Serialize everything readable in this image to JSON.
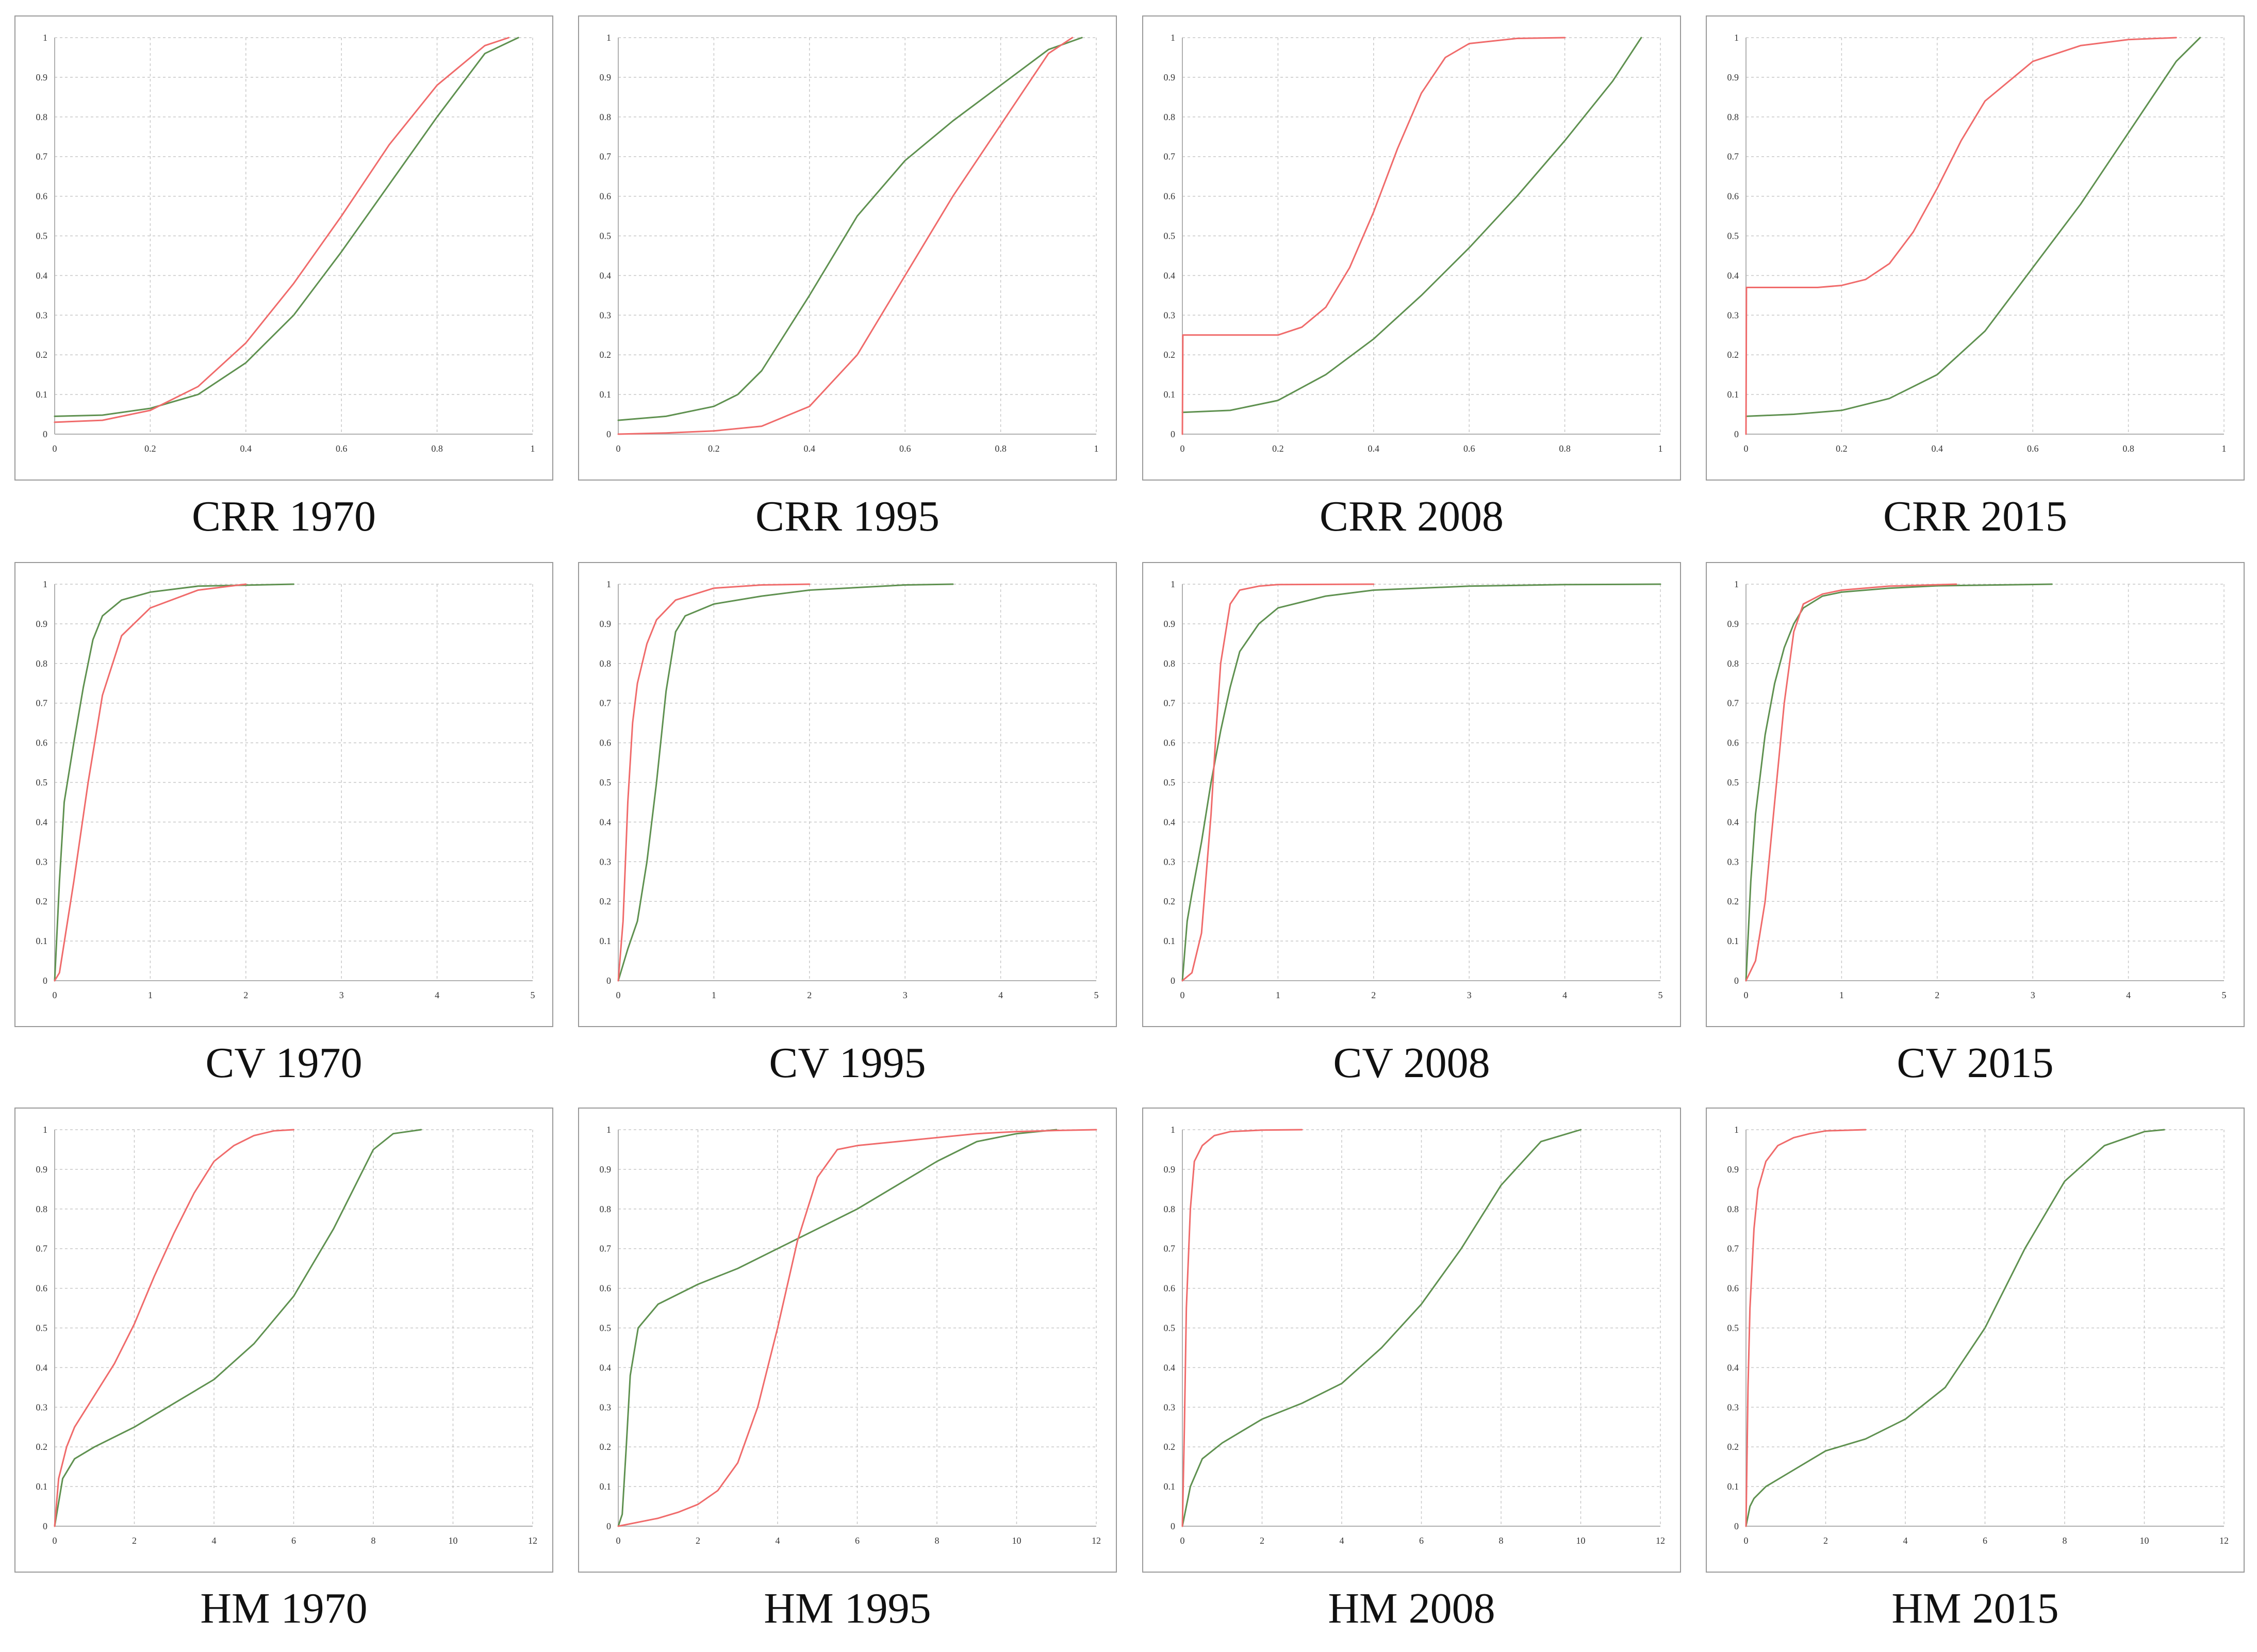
{
  "colors": {
    "red_series": "#f06b6b",
    "green_series": "#5f9150",
    "gridline": "#c8c8c8",
    "frame": "#9a9a9a"
  },
  "chart_data": [
    {
      "type": "line",
      "title": "CRR 1970",
      "xlim": [
        0,
        1
      ],
      "ylim": [
        0,
        1
      ],
      "xticks": [
        "0",
        "0.2",
        "0.4",
        "0.6",
        "0.8",
        "1"
      ],
      "yticks": [
        "0",
        "0.1",
        "0.2",
        "0.3",
        "0.4",
        "0.5",
        "0.6",
        "0.7",
        "0.8",
        "0.9",
        "1"
      ],
      "series": [
        {
          "name": "red",
          "x": [
            0,
            0.1,
            0.2,
            0.3,
            0.4,
            0.5,
            0.6,
            0.7,
            0.8,
            0.9,
            0.95
          ],
          "y": [
            0.03,
            0.035,
            0.06,
            0.12,
            0.23,
            0.38,
            0.55,
            0.73,
            0.88,
            0.98,
            1.0
          ]
        },
        {
          "name": "green",
          "x": [
            0,
            0.1,
            0.2,
            0.3,
            0.4,
            0.5,
            0.6,
            0.7,
            0.8,
            0.9,
            0.97
          ],
          "y": [
            0.045,
            0.048,
            0.065,
            0.1,
            0.18,
            0.3,
            0.46,
            0.63,
            0.8,
            0.96,
            1.0
          ]
        }
      ]
    },
    {
      "type": "line",
      "title": "CRR 1995",
      "xlim": [
        0,
        1
      ],
      "ylim": [
        0,
        1
      ],
      "xticks": [
        "0",
        "0.2",
        "0.4",
        "0.6",
        "0.8",
        "1"
      ],
      "yticks": [
        "0",
        "0.1",
        "0.2",
        "0.3",
        "0.4",
        "0.5",
        "0.6",
        "0.7",
        "0.8",
        "0.9",
        "1"
      ],
      "series": [
        {
          "name": "red",
          "x": [
            0,
            0.1,
            0.2,
            0.3,
            0.4,
            0.5,
            0.6,
            0.7,
            0.8,
            0.9,
            0.95
          ],
          "y": [
            0.0,
            0.003,
            0.008,
            0.02,
            0.07,
            0.2,
            0.4,
            0.6,
            0.78,
            0.96,
            1.0
          ]
        },
        {
          "name": "green",
          "x": [
            0,
            0.1,
            0.2,
            0.25,
            0.3,
            0.4,
            0.5,
            0.6,
            0.7,
            0.8,
            0.9,
            0.97
          ],
          "y": [
            0.035,
            0.045,
            0.07,
            0.1,
            0.16,
            0.35,
            0.55,
            0.69,
            0.79,
            0.88,
            0.97,
            1.0
          ]
        }
      ]
    },
    {
      "type": "line",
      "title": "CRR 2008",
      "xlim": [
        0,
        1
      ],
      "ylim": [
        0,
        1
      ],
      "xticks": [
        "0",
        "0.2",
        "0.4",
        "0.6",
        "0.8",
        "1"
      ],
      "yticks": [
        "0",
        "0.1",
        "0.2",
        "0.3",
        "0.4",
        "0.5",
        "0.6",
        "0.7",
        "0.8",
        "0.9",
        "1"
      ],
      "series": [
        {
          "name": "red",
          "x": [
            0,
            0.001,
            0.2,
            0.25,
            0.3,
            0.35,
            0.4,
            0.45,
            0.5,
            0.55,
            0.6,
            0.7,
            0.8
          ],
          "y": [
            0.0,
            0.25,
            0.25,
            0.27,
            0.32,
            0.42,
            0.56,
            0.72,
            0.86,
            0.95,
            0.985,
            0.998,
            1.0
          ]
        },
        {
          "name": "green",
          "x": [
            0,
            0.1,
            0.2,
            0.3,
            0.4,
            0.5,
            0.6,
            0.7,
            0.8,
            0.9,
            0.96
          ],
          "y": [
            0.055,
            0.06,
            0.085,
            0.15,
            0.24,
            0.35,
            0.47,
            0.6,
            0.74,
            0.89,
            1.0
          ]
        }
      ]
    },
    {
      "type": "line",
      "title": "CRR 2015",
      "xlim": [
        0,
        1
      ],
      "ylim": [
        0,
        1
      ],
      "xticks": [
        "0",
        "0.2",
        "0.4",
        "0.6",
        "0.8",
        "1"
      ],
      "yticks": [
        "0",
        "0.1",
        "0.2",
        "0.3",
        "0.4",
        "0.5",
        "0.6",
        "0.7",
        "0.8",
        "0.9",
        "1"
      ],
      "series": [
        {
          "name": "red",
          "x": [
            0,
            0.001,
            0.15,
            0.2,
            0.25,
            0.3,
            0.35,
            0.4,
            0.45,
            0.5,
            0.6,
            0.7,
            0.8,
            0.9
          ],
          "y": [
            0.0,
            0.37,
            0.37,
            0.375,
            0.39,
            0.43,
            0.51,
            0.62,
            0.74,
            0.84,
            0.94,
            0.98,
            0.995,
            1.0
          ]
        },
        {
          "name": "green",
          "x": [
            0,
            0.1,
            0.2,
            0.3,
            0.4,
            0.5,
            0.6,
            0.7,
            0.8,
            0.9,
            0.95
          ],
          "y": [
            0.045,
            0.05,
            0.06,
            0.09,
            0.15,
            0.26,
            0.42,
            0.58,
            0.76,
            0.94,
            1.0
          ]
        }
      ]
    },
    {
      "type": "line",
      "title": "CV 1970",
      "xlim": [
        0,
        5
      ],
      "ylim": [
        0,
        1
      ],
      "xticks": [
        "0",
        "1",
        "2",
        "3",
        "4",
        "5"
      ],
      "yticks": [
        "0",
        "0.1",
        "0.2",
        "0.3",
        "0.4",
        "0.5",
        "0.6",
        "0.7",
        "0.8",
        "0.9",
        "1"
      ],
      "series": [
        {
          "name": "red",
          "x": [
            0,
            0.05,
            0.2,
            0.35,
            0.5,
            0.7,
            1.0,
            1.5,
            2.0
          ],
          "y": [
            0.0,
            0.02,
            0.25,
            0.5,
            0.72,
            0.87,
            0.94,
            0.985,
            1.0
          ]
        },
        {
          "name": "green",
          "x": [
            0,
            0.05,
            0.1,
            0.2,
            0.3,
            0.4,
            0.5,
            0.7,
            1.0,
            1.5,
            2.5
          ],
          "y": [
            0.0,
            0.25,
            0.45,
            0.6,
            0.74,
            0.86,
            0.92,
            0.96,
            0.98,
            0.995,
            1.0
          ]
        }
      ]
    },
    {
      "type": "line",
      "title": "CV 1995",
      "xlim": [
        0,
        5
      ],
      "ylim": [
        0,
        1
      ],
      "xticks": [
        "0",
        "1",
        "2",
        "3",
        "4",
        "5"
      ],
      "yticks": [
        "0",
        "0.1",
        "0.2",
        "0.3",
        "0.4",
        "0.5",
        "0.6",
        "0.7",
        "0.8",
        "0.9",
        "1"
      ],
      "series": [
        {
          "name": "red",
          "x": [
            0,
            0.05,
            0.1,
            0.15,
            0.2,
            0.3,
            0.4,
            0.6,
            1.0,
            1.5,
            2.0
          ],
          "y": [
            0.0,
            0.15,
            0.45,
            0.65,
            0.75,
            0.85,
            0.91,
            0.96,
            0.99,
            0.998,
            1.0
          ]
        },
        {
          "name": "green",
          "x": [
            0,
            0.1,
            0.2,
            0.3,
            0.4,
            0.5,
            0.6,
            0.7,
            1.0,
            1.5,
            2.0,
            3.0,
            3.5
          ],
          "y": [
            0.0,
            0.08,
            0.15,
            0.3,
            0.5,
            0.73,
            0.88,
            0.92,
            0.95,
            0.97,
            0.985,
            0.998,
            1.0
          ]
        }
      ]
    },
    {
      "type": "line",
      "title": "CV 2008",
      "xlim": [
        0,
        5
      ],
      "ylim": [
        0,
        1
      ],
      "xticks": [
        "0",
        "1",
        "2",
        "3",
        "4",
        "5"
      ],
      "yticks": [
        "0",
        "0.1",
        "0.2",
        "0.3",
        "0.4",
        "0.5",
        "0.6",
        "0.7",
        "0.8",
        "0.9",
        "1"
      ],
      "series": [
        {
          "name": "red",
          "x": [
            0,
            0.1,
            0.2,
            0.3,
            0.35,
            0.4,
            0.5,
            0.6,
            0.8,
            1.0,
            2.0
          ],
          "y": [
            0.0,
            0.02,
            0.12,
            0.42,
            0.62,
            0.8,
            0.95,
            0.985,
            0.995,
            0.999,
            1.0
          ]
        },
        {
          "name": "green",
          "x": [
            0,
            0.05,
            0.1,
            0.2,
            0.3,
            0.4,
            0.5,
            0.6,
            0.8,
            1.0,
            1.5,
            2.0,
            3.0,
            4.0,
            5.0
          ],
          "y": [
            0.0,
            0.15,
            0.22,
            0.35,
            0.5,
            0.63,
            0.74,
            0.83,
            0.9,
            0.94,
            0.97,
            0.985,
            0.995,
            0.999,
            1.0
          ]
        }
      ]
    },
    {
      "type": "line",
      "title": "CV 2015",
      "xlim": [
        0,
        5
      ],
      "ylim": [
        0,
        1
      ],
      "xticks": [
        "0",
        "1",
        "2",
        "3",
        "4",
        "5"
      ],
      "yticks": [
        "0",
        "0.1",
        "0.2",
        "0.3",
        "0.4",
        "0.5",
        "0.6",
        "0.7",
        "0.8",
        "0.9",
        "1"
      ],
      "series": [
        {
          "name": "red",
          "x": [
            0,
            0.1,
            0.2,
            0.3,
            0.4,
            0.5,
            0.6,
            0.8,
            1.0,
            1.5,
            2.2
          ],
          "y": [
            0.0,
            0.05,
            0.2,
            0.45,
            0.7,
            0.88,
            0.95,
            0.975,
            0.985,
            0.995,
            1.0
          ]
        },
        {
          "name": "green",
          "x": [
            0,
            0.05,
            0.1,
            0.2,
            0.3,
            0.4,
            0.5,
            0.6,
            0.8,
            1.0,
            1.5,
            2.0,
            3.2
          ],
          "y": [
            0.0,
            0.25,
            0.42,
            0.62,
            0.75,
            0.84,
            0.9,
            0.94,
            0.97,
            0.98,
            0.99,
            0.996,
            1.0
          ]
        }
      ]
    },
    {
      "type": "line",
      "title": "HM 1970",
      "xlim": [
        0,
        12
      ],
      "ylim": [
        0,
        1
      ],
      "xticks": [
        "0",
        "2",
        "4",
        "6",
        "8",
        "10",
        "12"
      ],
      "yticks": [
        "0",
        "0.1",
        "0.2",
        "0.3",
        "0.4",
        "0.5",
        "0.6",
        "0.7",
        "0.8",
        "0.9",
        "1"
      ],
      "series": [
        {
          "name": "red",
          "x": [
            0,
            0.1,
            0.3,
            0.5,
            1.0,
            1.5,
            2.0,
            2.5,
            3.0,
            3.5,
            4.0,
            4.5,
            5.0,
            5.5,
            6.0
          ],
          "y": [
            0.0,
            0.12,
            0.2,
            0.25,
            0.33,
            0.41,
            0.51,
            0.63,
            0.74,
            0.84,
            0.92,
            0.96,
            0.985,
            0.997,
            1.0
          ]
        },
        {
          "name": "green",
          "x": [
            0,
            0.1,
            0.2,
            0.5,
            1.0,
            2.0,
            3.0,
            4.0,
            5.0,
            6.0,
            7.0,
            7.5,
            8.0,
            8.5,
            9.2
          ],
          "y": [
            0.0,
            0.06,
            0.12,
            0.17,
            0.2,
            0.25,
            0.31,
            0.37,
            0.46,
            0.58,
            0.75,
            0.85,
            0.95,
            0.99,
            1.0
          ]
        }
      ]
    },
    {
      "type": "line",
      "title": "HM 1995",
      "xlim": [
        0,
        12
      ],
      "ylim": [
        0,
        1
      ],
      "xticks": [
        "0",
        "2",
        "4",
        "6",
        "8",
        "10",
        "12"
      ],
      "yticks": [
        "0",
        "0.1",
        "0.2",
        "0.3",
        "0.4",
        "0.5",
        "0.6",
        "0.7",
        "0.8",
        "0.9",
        "1"
      ],
      "series": [
        {
          "name": "red",
          "x": [
            0,
            0.5,
            1.0,
            1.5,
            2.0,
            2.5,
            3.0,
            3.5,
            4.0,
            4.5,
            5.0,
            5.5,
            6.0,
            7.0,
            8.0,
            9.0,
            10.0,
            11.0,
            12.0
          ],
          "y": [
            0.0,
            0.01,
            0.02,
            0.035,
            0.055,
            0.09,
            0.16,
            0.3,
            0.5,
            0.72,
            0.88,
            0.95,
            0.96,
            0.97,
            0.98,
            0.99,
            0.995,
            0.998,
            1.0
          ]
        },
        {
          "name": "green",
          "x": [
            0,
            0.1,
            0.2,
            0.3,
            0.5,
            1.0,
            2.0,
            3.0,
            4.0,
            5.0,
            6.0,
            7.0,
            8.0,
            9.0,
            10.0,
            11.0
          ],
          "y": [
            0.0,
            0.03,
            0.2,
            0.38,
            0.5,
            0.56,
            0.61,
            0.65,
            0.7,
            0.75,
            0.8,
            0.86,
            0.92,
            0.97,
            0.99,
            1.0
          ]
        }
      ]
    },
    {
      "type": "line",
      "title": "HM 2008",
      "xlim": [
        0,
        12
      ],
      "ylim": [
        0,
        1
      ],
      "xticks": [
        "0",
        "2",
        "4",
        "6",
        "8",
        "10",
        "12"
      ],
      "yticks": [
        "0",
        "0.1",
        "0.2",
        "0.3",
        "0.4",
        "0.5",
        "0.6",
        "0.7",
        "0.8",
        "0.9",
        "1"
      ],
      "series": [
        {
          "name": "red",
          "x": [
            0,
            0.05,
            0.1,
            0.2,
            0.3,
            0.5,
            0.8,
            1.2,
            2.0,
            3.0
          ],
          "y": [
            0.0,
            0.25,
            0.55,
            0.8,
            0.92,
            0.96,
            0.985,
            0.995,
            0.999,
            1.0
          ]
        },
        {
          "name": "green",
          "x": [
            0,
            0.1,
            0.2,
            0.5,
            1.0,
            2.0,
            3.0,
            4.0,
            5.0,
            6.0,
            7.0,
            8.0,
            9.0,
            10.0
          ],
          "y": [
            0.0,
            0.05,
            0.1,
            0.17,
            0.21,
            0.27,
            0.31,
            0.36,
            0.45,
            0.56,
            0.7,
            0.86,
            0.97,
            1.0
          ]
        }
      ]
    },
    {
      "type": "line",
      "title": "HM 2015",
      "xlim": [
        0,
        12
      ],
      "ylim": [
        0,
        1
      ],
      "xticks": [
        "0",
        "2",
        "4",
        "6",
        "8",
        "10",
        "12"
      ],
      "yticks": [
        "0",
        "0.1",
        "0.2",
        "0.3",
        "0.4",
        "0.5",
        "0.6",
        "0.7",
        "0.8",
        "0.9",
        "1"
      ],
      "series": [
        {
          "name": "red",
          "x": [
            0,
            0.05,
            0.1,
            0.2,
            0.3,
            0.5,
            0.8,
            1.2,
            1.6,
            2.0,
            3.0
          ],
          "y": [
            0.0,
            0.35,
            0.55,
            0.75,
            0.85,
            0.92,
            0.96,
            0.98,
            0.99,
            0.997,
            1.0
          ]
        },
        {
          "name": "green",
          "x": [
            0,
            0.1,
            0.2,
            0.5,
            1.0,
            2.0,
            3.0,
            4.0,
            5.0,
            6.0,
            7.0,
            8.0,
            9.0,
            10.0,
            10.5
          ],
          "y": [
            0.0,
            0.05,
            0.07,
            0.1,
            0.13,
            0.19,
            0.22,
            0.27,
            0.35,
            0.5,
            0.7,
            0.87,
            0.96,
            0.995,
            1.0
          ]
        }
      ]
    }
  ]
}
